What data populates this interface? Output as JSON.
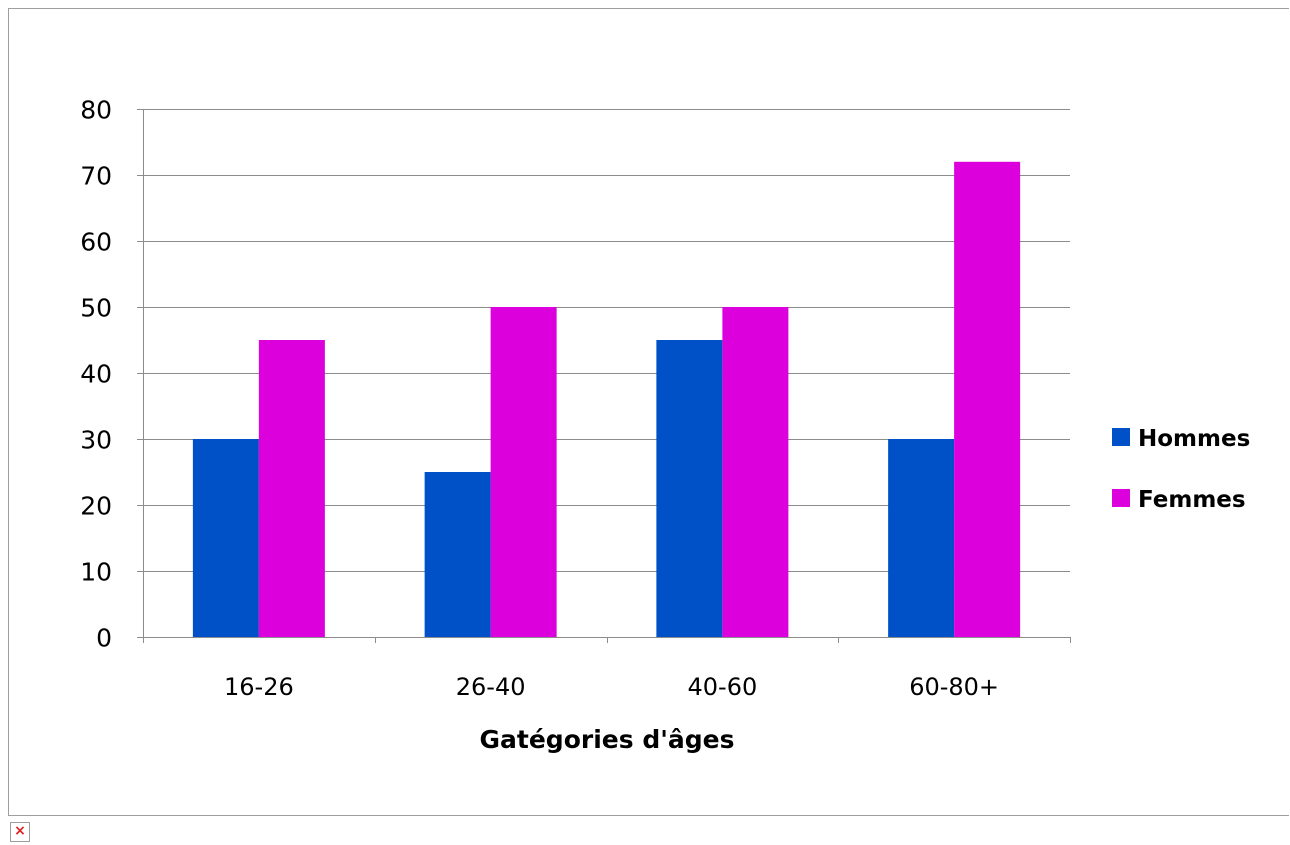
{
  "chart_data": {
    "type": "bar",
    "title": "",
    "xlabel": "Gatégories d'âges",
    "ylabel": "",
    "categories": [
      "16-26",
      "26-40",
      "40-60",
      "60-80+"
    ],
    "series": [
      {
        "name": "Hommes",
        "values": [
          30,
          25,
          45,
          30
        ],
        "color": "#0050c8"
      },
      {
        "name": "Femmes",
        "values": [
          45,
          50,
          50,
          72
        ],
        "color": "#dc00dc"
      }
    ],
    "ylim": [
      0,
      80
    ],
    "yticks": [
      "0",
      "10",
      "20",
      "30",
      "40",
      "50",
      "60",
      "70",
      "80"
    ],
    "grid": true,
    "legend": "right"
  },
  "colors": {
    "grid": "#8c8c8c",
    "text": "#000000"
  },
  "icons": {
    "broken_image": "broken-image-icon"
  },
  "broken_image_glyph": "×"
}
